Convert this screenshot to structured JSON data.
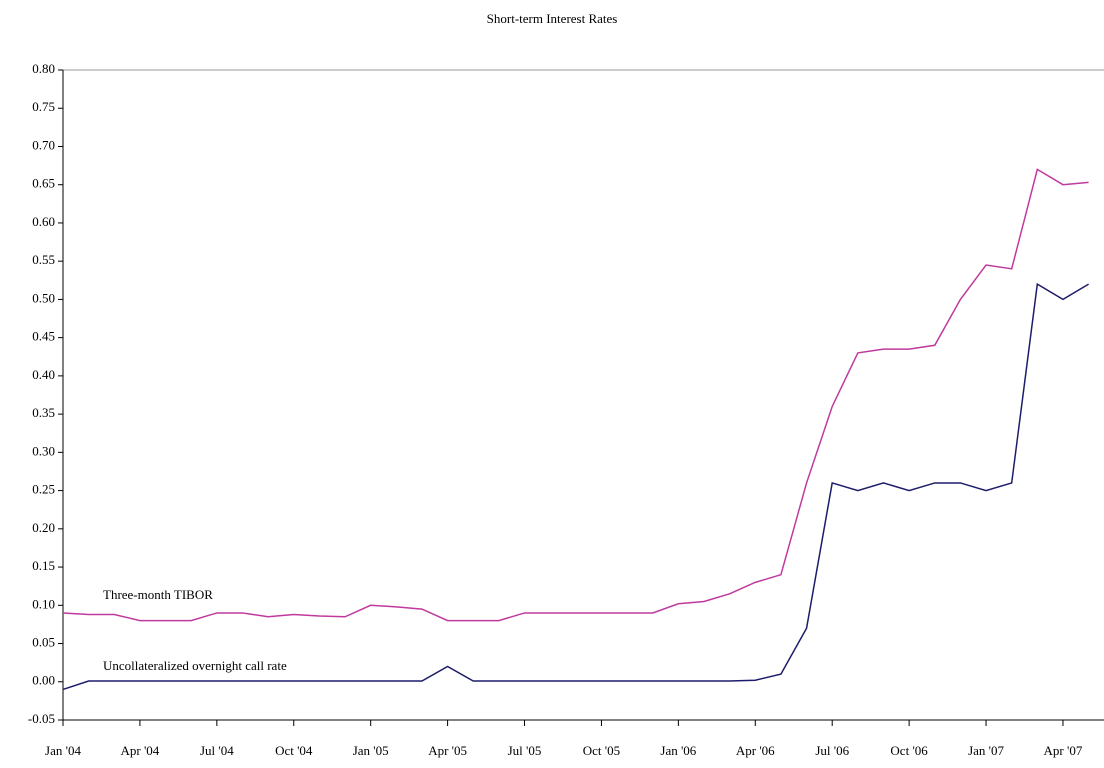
{
  "chart_data": {
    "type": "line",
    "title": "Short-term Interest Rates",
    "categories": [
      "Jan '04",
      null,
      null,
      "Apr '04",
      null,
      null,
      "Jul '04",
      null,
      null,
      "Oct '04",
      null,
      null,
      "Jan '05",
      null,
      null,
      "Apr '05",
      null,
      null,
      "Jul '05",
      null,
      null,
      "Oct '05",
      null,
      null,
      "Jan '06",
      null,
      null,
      "Apr '06",
      null,
      null,
      "Jul '06",
      null,
      null,
      "Oct '06",
      null,
      null,
      "Jan '07",
      null,
      null,
      "Apr '07",
      null
    ],
    "series": [
      {
        "name": "Three-month TIBOR",
        "color": "#c0399e",
        "values": [
          0.09,
          0.088,
          0.088,
          0.08,
          0.08,
          0.08,
          0.09,
          0.09,
          0.085,
          0.088,
          0.086,
          0.085,
          0.1,
          0.098,
          0.095,
          0.08,
          0.08,
          0.08,
          0.09,
          0.09,
          0.09,
          0.09,
          0.09,
          0.09,
          0.102,
          0.105,
          0.115,
          0.13,
          0.14,
          0.26,
          0.36,
          0.43,
          0.435,
          0.435,
          0.44,
          0.5,
          0.545,
          0.54,
          0.67,
          0.65,
          0.653
        ]
      },
      {
        "name": "Uncollateralized overnight call rate",
        "color": "#1c1c6b",
        "values": [
          -0.01,
          0.001,
          0.001,
          0.001,
          0.001,
          0.001,
          0.001,
          0.001,
          0.001,
          0.001,
          0.001,
          0.001,
          0.001,
          0.001,
          0.001,
          0.02,
          0.001,
          0.001,
          0.001,
          0.001,
          0.001,
          0.001,
          0.001,
          0.001,
          0.001,
          0.001,
          0.001,
          0.002,
          0.01,
          0.07,
          0.26,
          0.25,
          0.26,
          0.25,
          0.26,
          0.26,
          0.25,
          0.26,
          0.52,
          0.5,
          0.52
        ]
      }
    ],
    "ylim": [
      -0.05,
      0.8
    ],
    "yticks": [
      {
        "value": -0.05,
        "label": "-0.05"
      },
      {
        "value": 0,
        "label": "0.00"
      },
      {
        "value": 0.05,
        "label": "0.05"
      },
      {
        "value": 0.1,
        "label": "0.10"
      },
      {
        "value": 0.15,
        "label": "0.15"
      },
      {
        "value": 0.2,
        "label": "0.20"
      },
      {
        "value": 0.25,
        "label": "0.25"
      },
      {
        "value": 0.3,
        "label": "0.30"
      },
      {
        "value": 0.35,
        "label": "0.35"
      },
      {
        "value": 0.4,
        "label": "0.40"
      },
      {
        "value": 0.45,
        "label": "0.45"
      },
      {
        "value": 0.5,
        "label": "0.50"
      },
      {
        "value": 0.55,
        "label": "0.55"
      },
      {
        "value": 0.6,
        "label": "0.60"
      },
      {
        "value": 0.65,
        "label": "0.65"
      },
      {
        "value": 0.7,
        "label": "0.70"
      },
      {
        "value": 0.75,
        "label": "0.75"
      },
      {
        "value": 0.8,
        "label": "0.80"
      }
    ],
    "grid": false
  }
}
